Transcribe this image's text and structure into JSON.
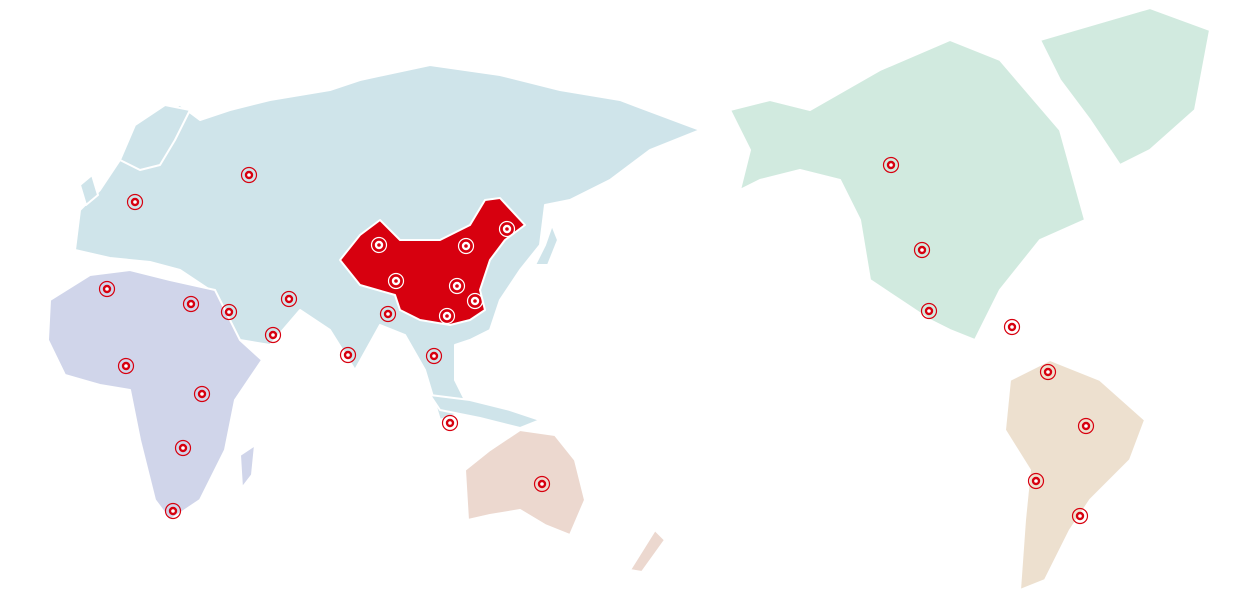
{
  "map": {
    "colors": {
      "eurasia": "#cfe4ea",
      "china": "#d7000f",
      "africa": "#d0d5ea",
      "oceania": "#ecd8cf",
      "north_america": "#d1eadf",
      "south_america": "#ede0cf",
      "marker": "#d7000f"
    },
    "marker_icon": "target-marker-icon"
  }
}
